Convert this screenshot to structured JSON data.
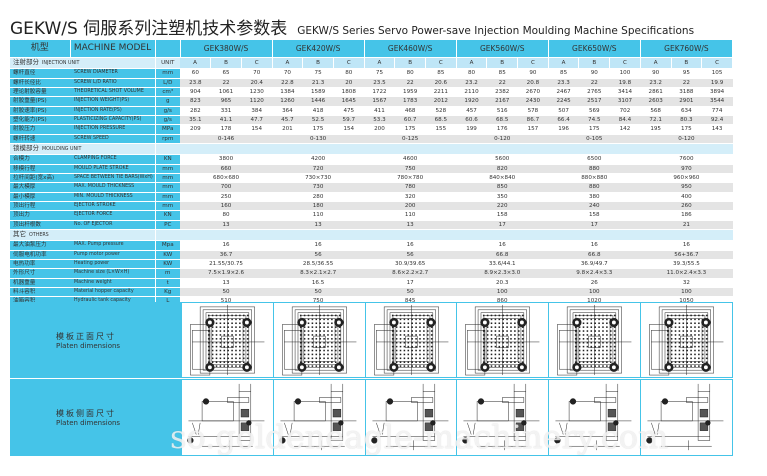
{
  "title": {
    "cn": "GEKW/S 伺服系列注塑机技术参数表",
    "en": "GEKW/S Series Servo Power-save Injection Moulding Machine Specifications"
  },
  "header": {
    "cn": "机型",
    "en": "MACHINE MODEL",
    "unit": "UNIT",
    "models": [
      "GEK380W/S",
      "GEK420W/S",
      "GEK460W/S",
      "GEK560W/S",
      "GEK650W/S",
      "GEK760W/S"
    ],
    "screw_types": [
      "A",
      "B",
      "C"
    ]
  },
  "injection": {
    "cn": "注射部分",
    "en": "INJECTION UNIT",
    "rows": [
      {
        "cn": "螺杆直径",
        "en": "SCREW DIAMETER",
        "unit": "mm",
        "values": [
          "60",
          "65",
          "70",
          "70",
          "75",
          "80",
          "75",
          "80",
          "85",
          "80",
          "85",
          "90",
          "85",
          "90",
          "100",
          "90",
          "95",
          "105"
        ]
      },
      {
        "cn": "螺杆长径比",
        "en": "SCREW L/D RATIO",
        "unit": "L/D",
        "values": [
          "23.8",
          "22",
          "20.4",
          "22.8",
          "21.3",
          "20",
          "23.5",
          "22",
          "20.6",
          "23.2",
          "22",
          "20.8",
          "23.3",
          "22",
          "19.8",
          "23.2",
          "22",
          "19.9"
        ]
      },
      {
        "cn": "理论射胶容量",
        "en": "THEORETICAL SHOT VOLUME",
        "unit": "cm³",
        "values": [
          "904",
          "1061",
          "1230",
          "1384",
          "1589",
          "1808",
          "1722",
          "1959",
          "2211",
          "2110",
          "2382",
          "2670",
          "2467",
          "2765",
          "3414",
          "2861",
          "3188",
          "3894"
        ]
      },
      {
        "cn": "射胶重量(PS)",
        "en": "INJECTION WEIGHT(PS)",
        "unit": "g",
        "values": [
          "823",
          "965",
          "1120",
          "1260",
          "1446",
          "1645",
          "1567",
          "1783",
          "2012",
          "1920",
          "2167",
          "2430",
          "2245",
          "2517",
          "3107",
          "2603",
          "2901",
          "3544"
        ]
      },
      {
        "cn": "射胶速率(PS)",
        "en": "INJECTION RATE(PS)",
        "unit": "g/s",
        "values": [
          "282",
          "331",
          "384",
          "364",
          "418",
          "475",
          "411",
          "468",
          "528",
          "457",
          "516",
          "578",
          "507",
          "569",
          "702",
          "568",
          "634",
          "774"
        ]
      },
      {
        "cn": "塑化能力(PS)",
        "en": "PLASTICIZING CAPACITY(PS)",
        "unit": "g/s",
        "values": [
          "35.1",
          "41.1",
          "47.7",
          "45.7",
          "52.5",
          "59.7",
          "53.3",
          "60.7",
          "68.5",
          "60.6",
          "68.5",
          "86.7",
          "66.4",
          "74.5",
          "84.4",
          "72.1",
          "80.3",
          "92.4"
        ]
      },
      {
        "cn": "射胶压力",
        "en": "INJECTION PRESSURE",
        "unit": "MPa",
        "values": [
          "209",
          "178",
          "154",
          "201",
          "175",
          "154",
          "200",
          "175",
          "155",
          "199",
          "176",
          "157",
          "196",
          "175",
          "142",
          "195",
          "175",
          "143"
        ]
      },
      {
        "cn": "螺杆转速",
        "en": "SCREW SPEED",
        "unit": "rpm",
        "span": [
          "0-146",
          "0-130",
          "0-125",
          "0-120",
          "0-105",
          "0-120"
        ]
      }
    ]
  },
  "moulding": {
    "cn": "锁模部分",
    "en": "MOULDING UNIT",
    "rows": [
      {
        "cn": "合模力",
        "en": "CLAMPING FORCE",
        "unit": "KN",
        "span": [
          "3800",
          "4200",
          "4600",
          "5600",
          "6500",
          "7600"
        ]
      },
      {
        "cn": "移模行程",
        "en": "MOULD PLATE STROKE",
        "unit": "mm",
        "span": [
          "660",
          "720",
          "750",
          "820",
          "880",
          "970"
        ]
      },
      {
        "cn": "拉杆间距(宽x高)",
        "en": "SPACE BETWEEN TIE BARS(WxH)",
        "unit": "mm",
        "span": [
          "680×680",
          "730×730",
          "780×780",
          "840×840",
          "880×880",
          "960×960"
        ]
      },
      {
        "cn": "最大模厚",
        "en": "MAX. MOULD THICKNESS",
        "unit": "mm",
        "span": [
          "700",
          "730",
          "780",
          "850",
          "880",
          "950"
        ]
      },
      {
        "cn": "最小模厚",
        "en": "MIN. MOULD THICKNESS",
        "unit": "mm",
        "span": [
          "250",
          "280",
          "320",
          "350",
          "380",
          "400"
        ]
      },
      {
        "cn": "顶出行程",
        "en": "EJECTOR STROKE",
        "unit": "mm",
        "span": [
          "160",
          "180",
          "200",
          "220",
          "240",
          "260"
        ]
      },
      {
        "cn": "顶出力",
        "en": "EJECTOR FORCE",
        "unit": "KN",
        "span": [
          "80",
          "110",
          "110",
          "158",
          "158",
          "186"
        ]
      },
      {
        "cn": "顶出杆根数",
        "en": "No. OF EJECTOR",
        "unit": "PC",
        "span": [
          "13",
          "13",
          "13",
          "17",
          "17",
          "21"
        ]
      }
    ]
  },
  "others": {
    "cn": "其它",
    "en": "OTHERS",
    "rows": [
      {
        "cn": "最大油泵压力",
        "en": "MAX. Pump pressure",
        "unit": "Mpa",
        "span": [
          "16",
          "16",
          "16",
          "16",
          "16",
          "16"
        ]
      },
      {
        "cn": "伺服电机功率",
        "en": "Pump motor power",
        "unit": "KW",
        "span": [
          "36.7",
          "56",
          "56",
          "66.8",
          "66.8",
          "56+36.7"
        ]
      },
      {
        "cn": "电热功率",
        "en": "Heating power",
        "unit": "KW",
        "span": [
          "21.55/30.75",
          "28.5/36.55",
          "30.9/39.65",
          "33.6/44.1",
          "36.9/49.7",
          "39.3/55.5"
        ]
      },
      {
        "cn": "外形尺寸",
        "en": "Machine size (L×W×H)",
        "unit": "m",
        "span": [
          "7.5×1.9×2.6",
          "8.3×2.1×2.7",
          "8.6×2.2×2.7",
          "8.9×2.3×3.0",
          "9.8×2.4×3.3",
          "11.0×2.4×3.3"
        ]
      },
      {
        "cn": "机器重量",
        "en": "Machine weight",
        "unit": "t",
        "span": [
          "13",
          "16.5",
          "17",
          "20.3",
          "26",
          "32"
        ]
      },
      {
        "cn": "料斗容积",
        "en": "Material hopper capacity",
        "unit": "Kg",
        "span": [
          "50",
          "50",
          "50",
          "100",
          "100",
          "100"
        ]
      },
      {
        "cn": "油箱容积",
        "en": "Hydraulic tank capacity",
        "unit": "L",
        "span": [
          "510",
          "750",
          "845",
          "860",
          "1020",
          "1050"
        ]
      }
    ]
  },
  "platen_front": {
    "cn": "模板正面尺寸",
    "en": "Platen dimensions"
  },
  "platen_side": {
    "cn": "模板侧面尺寸",
    "en": "Platen dimensions"
  },
  "watermark": "so.goldeneagle-machinery.com",
  "colors": {
    "header_cyan": "#45c4e8",
    "sub_blue": "#d4eef9",
    "row_gray": "#e4e4e4"
  }
}
